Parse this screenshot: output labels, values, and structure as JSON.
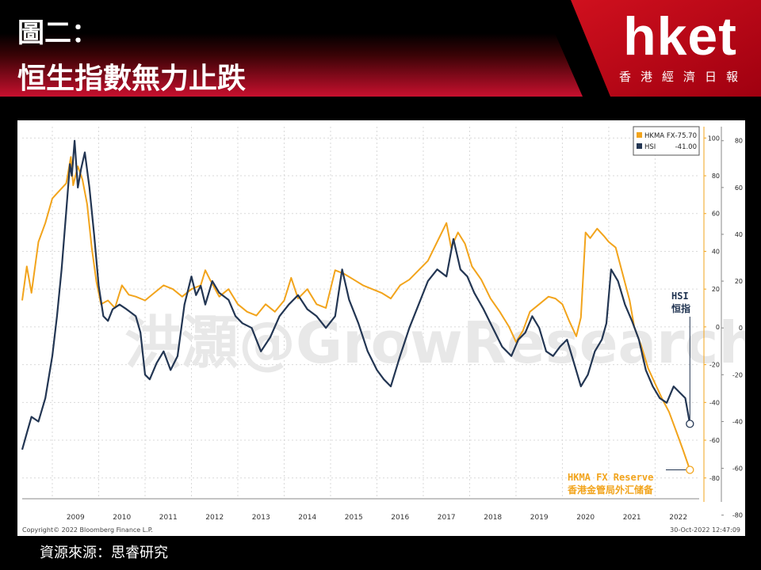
{
  "header": {
    "title_line1": "圖二：",
    "title_line2": "恒生指數無力止跌",
    "logo": "hket",
    "logo_sub": "香港經濟日報"
  },
  "colors": {
    "banner_red": "#c8102e",
    "hkma_series": "#f2a41c",
    "hsi_series": "#233653",
    "watermark": "#e6e6e6"
  },
  "watermark": "洪灝@GrowResearch",
  "footer": {
    "source": "資源來源：思睿研究"
  },
  "chart": {
    "copyright": "Copyright© 2022 Bloomberg Finance L.P.",
    "timestamp": "30-Oct-2022 12:47:09",
    "annotations": {
      "hsi_label_1": "HSI",
      "hsi_label_2": "恒指",
      "hkma_label_1": "HKMA FX Reserve",
      "hkma_label_2": "香港金管局外汇储备"
    }
  },
  "chart_data": {
    "type": "line",
    "title": "",
    "xlabel": "",
    "ylabel": "",
    "x_ticks": [
      "2009",
      "2010",
      "2011",
      "2012",
      "2013",
      "2014",
      "2015",
      "2016",
      "2017",
      "2018",
      "2019",
      "2020",
      "2021",
      "2022"
    ],
    "xlim": [
      2008.35,
      2022.95
    ],
    "legend_position": "top-right",
    "grid": true,
    "y_axes": {
      "hkma": {
        "side": "right-inner",
        "ticks": [
          -80,
          -60,
          -40,
          -20,
          0,
          20,
          40,
          60,
          80,
          100
        ],
        "ylim": [
          -91,
          106
        ]
      },
      "hsi": {
        "side": "right-outer",
        "ticks": [
          -80,
          -60,
          -40,
          -20,
          0,
          20,
          40,
          60,
          80
        ],
        "ylim": [
          -73,
          86
        ]
      }
    },
    "series": [
      {
        "name": "HKMA FX",
        "legend_label": "HKMA FX",
        "legend_value": "-75.70",
        "axis": "hkma",
        "x": [
          2008.35,
          2008.45,
          2008.55,
          2008.7,
          2008.85,
          2009.0,
          2009.15,
          2009.3,
          2009.4,
          2009.45,
          2009.55,
          2009.65,
          2009.75,
          2009.85,
          2009.95,
          2010.05,
          2010.2,
          2010.35,
          2010.5,
          2010.65,
          2010.8,
          2011.0,
          2011.2,
          2011.4,
          2011.6,
          2011.8,
          2012.0,
          2012.2,
          2012.3,
          2012.4,
          2012.6,
          2012.8,
          2013.0,
          2013.2,
          2013.4,
          2013.6,
          2013.8,
          2014.0,
          2014.15,
          2014.3,
          2014.5,
          2014.7,
          2014.9,
          2015.1,
          2015.3,
          2015.5,
          2015.7,
          2015.9,
          2016.1,
          2016.3,
          2016.5,
          2016.7,
          2016.9,
          2017.1,
          2017.3,
          2017.5,
          2017.6,
          2017.75,
          2017.9,
          2018.05,
          2018.25,
          2018.45,
          2018.65,
          2018.85,
          2019.0,
          2019.15,
          2019.3,
          2019.5,
          2019.7,
          2019.85,
          2020.0,
          2020.15,
          2020.3,
          2020.4,
          2020.5,
          2020.6,
          2020.75,
          2020.9,
          2021.0,
          2021.15,
          2021.3,
          2021.45,
          2021.55,
          2021.7,
          2021.85,
          2022.0,
          2022.15,
          2022.3,
          2022.45,
          2022.6,
          2022.75
        ],
        "values": [
          14,
          32,
          18,
          45,
          55,
          68,
          72,
          76,
          90,
          75,
          85,
          78,
          65,
          42,
          24,
          12,
          14,
          10,
          22,
          17,
          16,
          14,
          18,
          22,
          20,
          16,
          20,
          22,
          30,
          25,
          16,
          20,
          12,
          8,
          6,
          12,
          8,
          14,
          26,
          15,
          20,
          12,
          10,
          30,
          28,
          25,
          22,
          20,
          18,
          15,
          22,
          25,
          30,
          35,
          45,
          55,
          42,
          50,
          44,
          32,
          25,
          15,
          8,
          0,
          -8,
          -2,
          8,
          12,
          16,
          15,
          12,
          3,
          -5,
          5,
          50,
          47,
          52,
          48,
          45,
          42,
          28,
          14,
          0,
          -10,
          -22,
          -30,
          -38,
          -45,
          -55,
          -65,
          -75.7
        ]
      },
      {
        "name": "HSI",
        "legend_label": "HSI",
        "legend_value": "-41.00",
        "axis": "hsi",
        "x": [
          2008.35,
          2008.45,
          2008.55,
          2008.7,
          2008.85,
          2009.0,
          2009.1,
          2009.2,
          2009.3,
          2009.38,
          2009.42,
          2009.48,
          2009.55,
          2009.62,
          2009.7,
          2009.8,
          2009.9,
          2010.0,
          2010.1,
          2010.2,
          2010.3,
          2010.45,
          2010.6,
          2010.8,
          2010.9,
          2011.0,
          2011.1,
          2011.25,
          2011.4,
          2011.55,
          2011.7,
          2011.85,
          2012.0,
          2012.1,
          2012.2,
          2012.3,
          2012.45,
          2012.6,
          2012.8,
          2012.95,
          2013.1,
          2013.3,
          2013.5,
          2013.7,
          2013.9,
          2014.1,
          2014.3,
          2014.5,
          2014.7,
          2014.9,
          2015.1,
          2015.25,
          2015.4,
          2015.6,
          2015.8,
          2016.0,
          2016.15,
          2016.3,
          2016.5,
          2016.7,
          2016.9,
          2017.1,
          2017.3,
          2017.5,
          2017.65,
          2017.8,
          2017.95,
          2018.1,
          2018.3,
          2018.5,
          2018.7,
          2018.9,
          2019.05,
          2019.2,
          2019.35,
          2019.5,
          2019.65,
          2019.8,
          2019.95,
          2020.1,
          2020.25,
          2020.4,
          2020.55,
          2020.7,
          2020.85,
          2020.95,
          2021.05,
          2021.2,
          2021.35,
          2021.5,
          2021.65,
          2021.8,
          2021.95,
          2022.1,
          2022.25,
          2022.4,
          2022.55,
          2022.65,
          2022.75
        ],
        "values": [
          -52,
          -45,
          -38,
          -40,
          -30,
          -12,
          5,
          25,
          50,
          70,
          65,
          80,
          60,
          68,
          75,
          60,
          40,
          18,
          5,
          3,
          8,
          10,
          8,
          5,
          -2,
          -20,
          -22,
          -15,
          -10,
          -18,
          -12,
          10,
          22,
          14,
          18,
          10,
          20,
          15,
          12,
          5,
          2,
          0,
          -10,
          -4,
          5,
          10,
          14,
          8,
          5,
          0,
          5,
          25,
          12,
          2,
          -10,
          -18,
          -22,
          -25,
          -12,
          0,
          10,
          20,
          25,
          22,
          38,
          25,
          22,
          15,
          8,
          0,
          -8,
          -12,
          -5,
          -2,
          5,
          0,
          -10,
          -12,
          -8,
          -5,
          -15,
          -25,
          -20,
          -10,
          -5,
          2,
          25,
          20,
          10,
          3,
          -5,
          -18,
          -25,
          -30,
          -32,
          -25,
          -28,
          -30,
          -41
        ]
      }
    ]
  }
}
